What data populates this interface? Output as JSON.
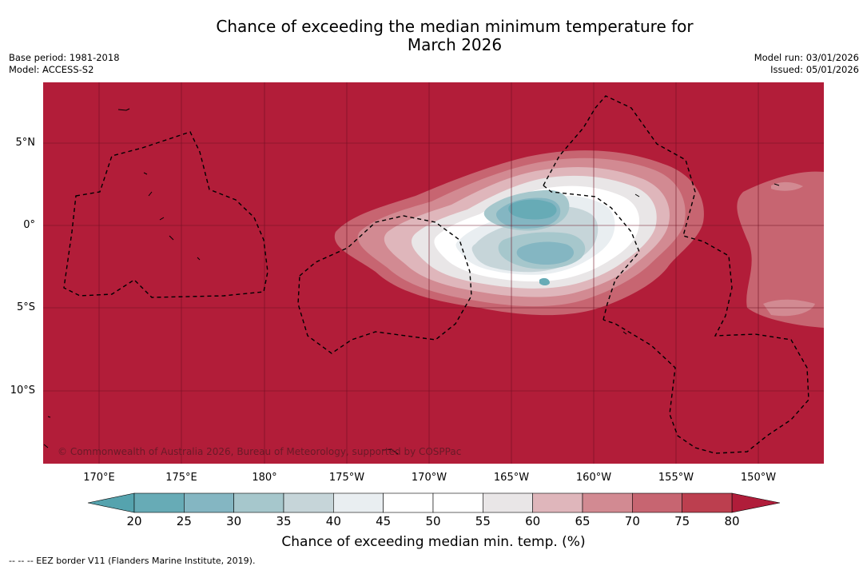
{
  "title_line1": "Chance of exceeding the median minimum temperature for",
  "title_line2": "March 2026",
  "base_period": "Base period: 1981-2018",
  "model": "Model: ACCESS-S2",
  "model_run": "Model run: 03/01/2026",
  "issued": "Issued: 05/01/2026",
  "lat_labels": [
    "5°N",
    "0°",
    "5°S",
    "10°S"
  ],
  "lon_labels": [
    "170°E",
    "175°E",
    "180°",
    "175°W",
    "170°W",
    "165°W",
    "160°W",
    "155°W",
    "150°W"
  ],
  "copyright": "© Commonwealth of Australia 2026, Bureau of Meteorology, supported by COSPPac",
  "colorbar": {
    "ticks": [
      "20",
      "25",
      "30",
      "35",
      "40",
      "45",
      "50",
      "55",
      "60",
      "65",
      "70",
      "75",
      "80"
    ],
    "colors": [
      "#67abb6",
      "#84b6c2",
      "#a6c7cc",
      "#c6d5d9",
      "#e9eef1",
      "#ffffff",
      "#ffffff",
      "#e9e6e7",
      "#dfb6bb",
      "#d28a92",
      "#c76571",
      "#bc3f4f"
    ],
    "under_color": "#55a3ae",
    "over_color": "#b01d3a",
    "label": "Chance of exceeding median min. temp. (%)"
  },
  "background_color": "#b21d39",
  "footnote": "-- -- -- EEZ border V11 (Flanders Marine Institute, 2019)."
}
